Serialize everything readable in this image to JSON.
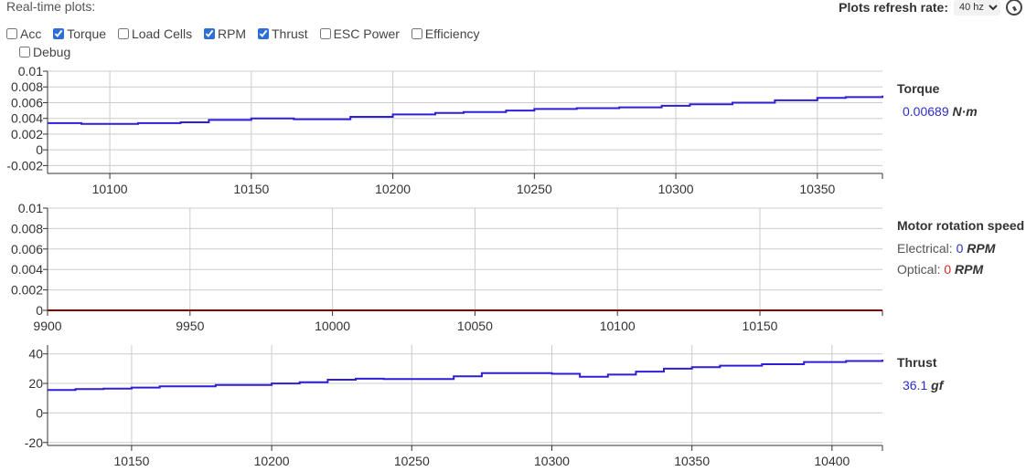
{
  "header": {
    "title": "Real-time plots:",
    "refresh_label": "Plots refresh rate:",
    "refresh_value": "40 hz"
  },
  "checkboxes": [
    {
      "label": "Acc",
      "checked": false
    },
    {
      "label": "Torque",
      "checked": true
    },
    {
      "label": "Load Cells",
      "checked": false
    },
    {
      "label": "RPM",
      "checked": true
    },
    {
      "label": "Thrust",
      "checked": true
    },
    {
      "label": "ESC Power",
      "checked": false
    },
    {
      "label": "Efficiency",
      "checked": false
    },
    {
      "label": "Debug",
      "checked": false
    }
  ],
  "legends": {
    "torque": {
      "title": "Torque",
      "value": "0.00689",
      "unit": "N·m"
    },
    "rpm": {
      "title": "Motor rotation speed",
      "electrical_label": "Electrical:",
      "electrical_value": "0",
      "optical_label": "Optical:",
      "optical_value": "0",
      "unit": "RPM"
    },
    "thrust": {
      "title": "Thrust",
      "value": "36.1",
      "unit": "gf"
    }
  },
  "colors": {
    "series_blue": "#2e1fd6",
    "series_red": "#8b0000",
    "grid": "#cccccc",
    "axis": "#333333"
  },
  "chart_data": [
    {
      "type": "line",
      "name": "torque",
      "xlim": [
        10078,
        10373
      ],
      "ylim": [
        -0.003,
        0.01
      ],
      "xticks": [
        10100,
        10150,
        10200,
        10250,
        10300,
        10350
      ],
      "yticks": [
        -0.002,
        0,
        0.002,
        0.004,
        0.006,
        0.008,
        0.01
      ],
      "ytick_labels": [
        "-0.002",
        "0",
        "0.002",
        "0.004",
        "0.006",
        "0.008",
        "0.01"
      ],
      "series": [
        {
          "color": "#2e1fd6",
          "x": [
            10078,
            10090,
            10100,
            10110,
            10125,
            10135,
            10150,
            10165,
            10175,
            10185,
            10200,
            10215,
            10225,
            10240,
            10250,
            10265,
            10280,
            10295,
            10305,
            10320,
            10335,
            10350,
            10360,
            10373
          ],
          "y": [
            0.0034,
            0.0033,
            0.0033,
            0.0034,
            0.0035,
            0.0038,
            0.004,
            0.0039,
            0.0039,
            0.0042,
            0.0045,
            0.0047,
            0.0048,
            0.005,
            0.0052,
            0.0053,
            0.0054,
            0.0056,
            0.0058,
            0.006,
            0.0063,
            0.0066,
            0.0067,
            0.0069
          ]
        }
      ]
    },
    {
      "type": "line",
      "name": "rpm",
      "xlim": [
        9900,
        10193
      ],
      "ylim": [
        0,
        0.01
      ],
      "xticks": [
        9900,
        9950,
        10000,
        10050,
        10100,
        10150
      ],
      "yticks": [
        0,
        0.002,
        0.004,
        0.006,
        0.008,
        0.01
      ],
      "ytick_labels": [
        "0",
        "0.002",
        "0.004",
        "0.006",
        "0.008",
        "0.01"
      ],
      "series": [
        {
          "color": "#2e1fd6",
          "x": [
            9900,
            10193
          ],
          "y": [
            0,
            0
          ]
        },
        {
          "color": "#8b0000",
          "x": [
            9900,
            10193
          ],
          "y": [
            0,
            0
          ]
        }
      ]
    },
    {
      "type": "line",
      "name": "thrust",
      "xlim": [
        10120,
        10418
      ],
      "ylim": [
        -22,
        46
      ],
      "xticks": [
        10150,
        10200,
        10250,
        10300,
        10350,
        10400
      ],
      "yticks": [
        -20,
        0,
        20,
        40
      ],
      "ytick_labels": [
        "-20",
        "0",
        "20",
        "40"
      ],
      "series": [
        {
          "color": "#2e1fd6",
          "x": [
            10120,
            10130,
            10140,
            10150,
            10160,
            10180,
            10200,
            10210,
            10220,
            10230,
            10240,
            10250,
            10265,
            10275,
            10290,
            10300,
            10310,
            10320,
            10330,
            10340,
            10350,
            10360,
            10375,
            10390,
            10405,
            10418
          ],
          "y": [
            15.5,
            16.2,
            16.5,
            17.2,
            18.0,
            19.0,
            20.0,
            20.8,
            22.5,
            23.2,
            23.0,
            23.0,
            24.8,
            27.0,
            27.0,
            26.5,
            24.5,
            26.0,
            28.0,
            30.0,
            31.0,
            32.0,
            33.0,
            34.5,
            35.2,
            36.1
          ]
        }
      ]
    }
  ]
}
